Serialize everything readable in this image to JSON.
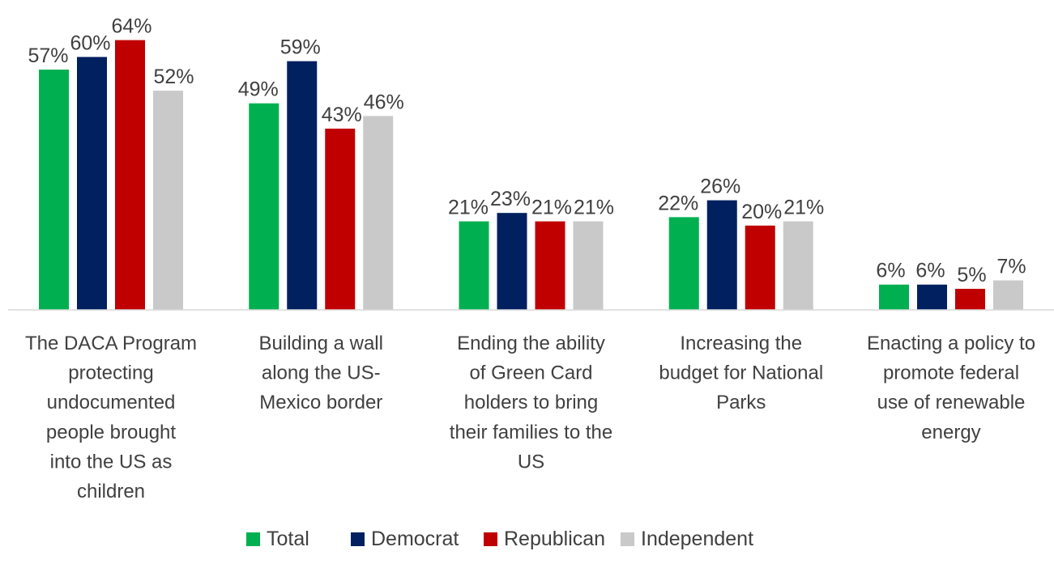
{
  "chart_data": {
    "type": "bar",
    "title": "",
    "xlabel": "",
    "ylabel": "",
    "ylim": [
      0,
      70
    ],
    "grid": false,
    "legend_position": "bottom",
    "categories": [
      "The DACA Program protecting undocumented people brought into the US as children",
      "Building a wall along the US-Mexico border",
      "Ending the ability of Green Card holders to bring their families to the US",
      "Increasing the budget for National Parks",
      "Enacting a policy to promote federal use of renewable energy"
    ],
    "category_lines": [
      [
        "The DACA Program",
        "protecting",
        "undocumented",
        "people brought",
        "into the US as",
        "children"
      ],
      [
        "Building a wall",
        "along the US-",
        "Mexico border"
      ],
      [
        "Ending the ability",
        "of Green Card",
        "holders to bring",
        "their families to the",
        "US"
      ],
      [
        "Increasing the",
        "budget for National",
        "Parks"
      ],
      [
        "Enacting a policy to",
        "promote federal",
        "use of renewable",
        "energy"
      ]
    ],
    "series": [
      {
        "name": "Total",
        "color": "#00B050",
        "values": [
          57,
          49,
          21,
          22,
          6
        ],
        "labels": [
          "57%",
          "49%",
          "21%",
          "22%",
          "6%"
        ]
      },
      {
        "name": "Democrat",
        "color": "#002060",
        "values": [
          60,
          59,
          23,
          26,
          6
        ],
        "labels": [
          "60%",
          "59%",
          "23%",
          "26%",
          "6%"
        ]
      },
      {
        "name": "Republican",
        "color": "#C00000",
        "values": [
          64,
          43,
          21,
          20,
          5
        ],
        "labels": [
          "64%",
          "43%",
          "21%",
          "20%",
          "5%"
        ]
      },
      {
        "name": "Independent",
        "color": "#C9C9C9",
        "values": [
          52,
          46,
          21,
          21,
          7
        ],
        "labels": [
          "52%",
          "46%",
          "21%",
          "21%",
          "7%"
        ]
      }
    ]
  }
}
